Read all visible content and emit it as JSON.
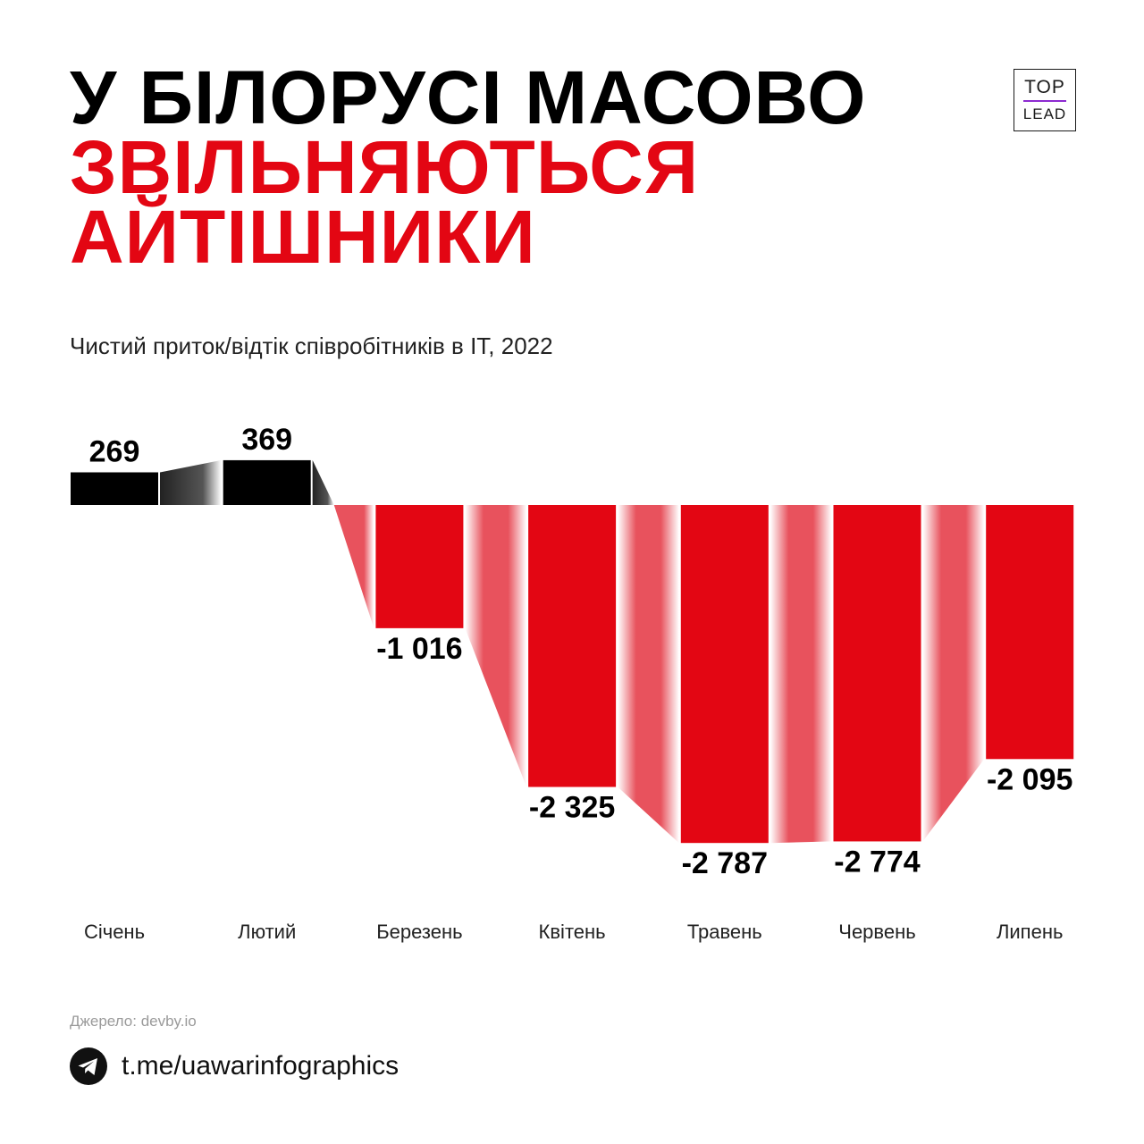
{
  "title": {
    "line1": "У БІЛОРУСІ МАСОВО",
    "line2": "ЗВІЛЬНЯЮТЬСЯ",
    "line3": "АЙТІШНИКИ"
  },
  "logo": {
    "top": "TOP",
    "bottom": "LEAD"
  },
  "subtitle": "Чистий приток/відтік співробітників в IT, 2022",
  "chart_data": {
    "type": "bar",
    "categories": [
      "Січень",
      "Лютий",
      "Березень",
      "Квітень",
      "Травень",
      "Червень",
      "Липень"
    ],
    "values": [
      269,
      369,
      -1016,
      -2325,
      -2787,
      -2774,
      -2095
    ],
    "value_labels": [
      "269",
      "369",
      "-1 016",
      "-2 325",
      "-2 787",
      "-2 774",
      "-2 095"
    ],
    "ylim": [
      -2787,
      369
    ],
    "title": "Чистий приток/відтік співробітників в IT, 2022",
    "grid": false,
    "legend": "none"
  },
  "colors": {
    "positive": "#000000",
    "negative": "#e30613",
    "connector_negative": "#e8525d",
    "connector_positive": "#444444"
  },
  "source": "Джерело: devby.io",
  "footer": {
    "link": "t.me/uawarinfographics",
    "icon": "telegram-icon"
  }
}
